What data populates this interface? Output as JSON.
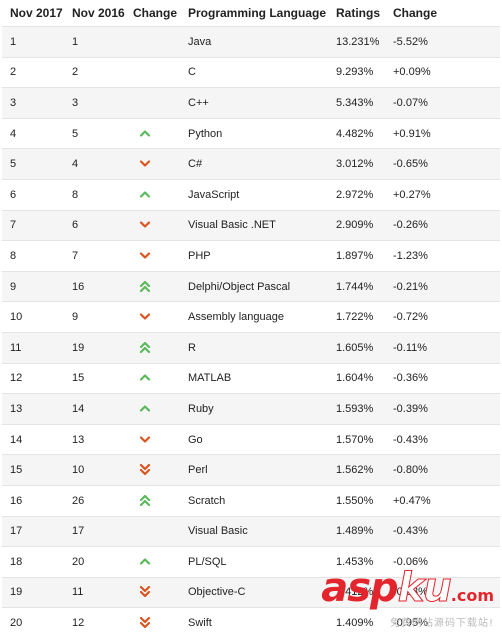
{
  "headers": [
    "Nov 2017",
    "Nov 2016",
    "Change",
    "Programming Language",
    "Ratings",
    "Change"
  ],
  "colors": {
    "up": "#5cb85c",
    "down": "#d9541e",
    "watermark": "#e3262d"
  },
  "rows": [
    {
      "r2017": "1",
      "r2016": "1",
      "trend": "",
      "lang": "Java",
      "rating": "13.231%",
      "change": "-5.52%"
    },
    {
      "r2017": "2",
      "r2016": "2",
      "trend": "",
      "lang": "C",
      "rating": "9.293%",
      "change": "+0.09%"
    },
    {
      "r2017": "3",
      "r2016": "3",
      "trend": "",
      "lang": "C++",
      "rating": "5.343%",
      "change": "-0.07%"
    },
    {
      "r2017": "4",
      "r2016": "5",
      "trend": "up",
      "lang": "Python",
      "rating": "4.482%",
      "change": "+0.91%"
    },
    {
      "r2017": "5",
      "r2016": "4",
      "trend": "down",
      "lang": "C#",
      "rating": "3.012%",
      "change": "-0.65%"
    },
    {
      "r2017": "6",
      "r2016": "8",
      "trend": "up",
      "lang": "JavaScript",
      "rating": "2.972%",
      "change": "+0.27%"
    },
    {
      "r2017": "7",
      "r2016": "6",
      "trend": "down",
      "lang": "Visual Basic .NET",
      "rating": "2.909%",
      "change": "-0.26%"
    },
    {
      "r2017": "8",
      "r2016": "7",
      "trend": "down",
      "lang": "PHP",
      "rating": "1.897%",
      "change": "-1.23%"
    },
    {
      "r2017": "9",
      "r2016": "16",
      "trend": "up2",
      "lang": "Delphi/Object Pascal",
      "rating": "1.744%",
      "change": "-0.21%"
    },
    {
      "r2017": "10",
      "r2016": "9",
      "trend": "down",
      "lang": "Assembly language",
      "rating": "1.722%",
      "change": "-0.72%"
    },
    {
      "r2017": "11",
      "r2016": "19",
      "trend": "up2",
      "lang": "R",
      "rating": "1.605%",
      "change": "-0.11%"
    },
    {
      "r2017": "12",
      "r2016": "15",
      "trend": "up",
      "lang": "MATLAB",
      "rating": "1.604%",
      "change": "-0.36%"
    },
    {
      "r2017": "13",
      "r2016": "14",
      "trend": "up",
      "lang": "Ruby",
      "rating": "1.593%",
      "change": "-0.39%"
    },
    {
      "r2017": "14",
      "r2016": "13",
      "trend": "down",
      "lang": "Go",
      "rating": "1.570%",
      "change": "-0.43%"
    },
    {
      "r2017": "15",
      "r2016": "10",
      "trend": "down2",
      "lang": "Perl",
      "rating": "1.562%",
      "change": "-0.80%"
    },
    {
      "r2017": "16",
      "r2016": "26",
      "trend": "up2",
      "lang": "Scratch",
      "rating": "1.550%",
      "change": "+0.47%"
    },
    {
      "r2017": "17",
      "r2016": "17",
      "trend": "",
      "lang": "Visual Basic",
      "rating": "1.489%",
      "change": "-0.43%"
    },
    {
      "r2017": "18",
      "r2016": "20",
      "trend": "up",
      "lang": "PL/SQL",
      "rating": "1.453%",
      "change": "-0.06%"
    },
    {
      "r2017": "19",
      "r2016": "11",
      "trend": "down2",
      "lang": "Objective-C",
      "rating": "1.412%",
      "change": "-0.83%"
    },
    {
      "r2017": "20",
      "r2016": "12",
      "trend": "down2",
      "lang": "Swift",
      "rating": "1.409%",
      "change": "-0.95%"
    }
  ],
  "watermark": {
    "asp": "asp",
    "ku": "ku",
    "com": ".com",
    "sub": "免费网站源码下载站!"
  }
}
